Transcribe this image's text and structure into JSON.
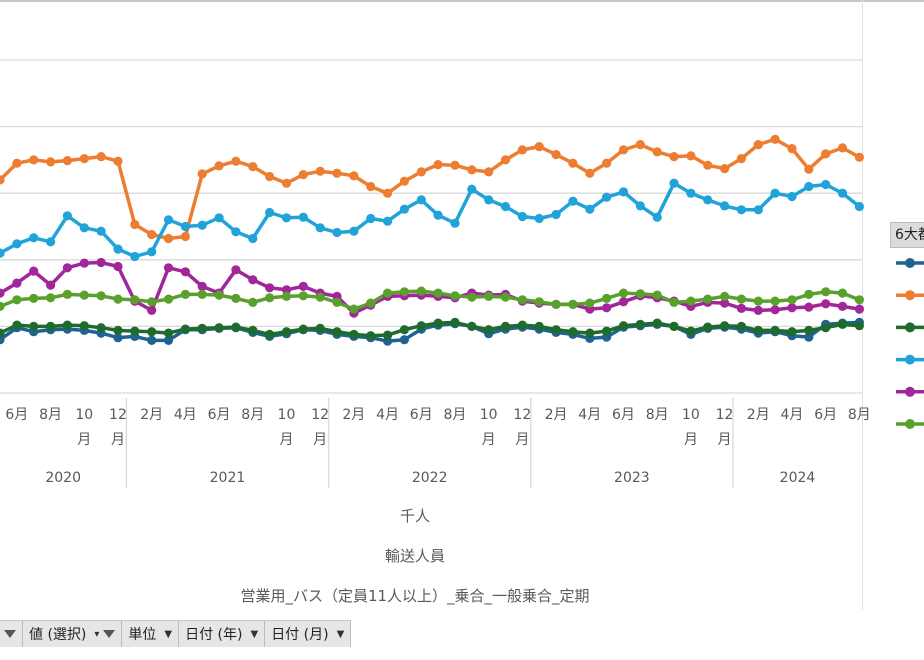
{
  "legend": {
    "title": "6大都"
  },
  "axis_titles": {
    "unit": "千人",
    "measure": "輸送人員",
    "series_category": "営業用_バス（定員11人以上）_乗合_一般乗合_定期"
  },
  "filter_bar": {
    "value_select": "値 (選択)",
    "unit": "単位",
    "date_year": "日付 (年)",
    "date_month": "日付 (月)"
  },
  "chart_data": {
    "type": "line",
    "x": [
      "2020-05",
      "2020-06",
      "2020-07",
      "2020-08",
      "2020-09",
      "2020-10",
      "2020-11",
      "2020-12",
      "2021-01",
      "2021-02",
      "2021-03",
      "2021-04",
      "2021-05",
      "2021-06",
      "2021-07",
      "2021-08",
      "2021-09",
      "2021-10",
      "2021-11",
      "2021-12",
      "2022-01",
      "2022-02",
      "2022-03",
      "2022-04",
      "2022-05",
      "2022-06",
      "2022-07",
      "2022-08",
      "2022-09",
      "2022-10",
      "2022-11",
      "2022-12",
      "2023-01",
      "2023-02",
      "2023-03",
      "2023-04",
      "2023-05",
      "2023-06",
      "2023-07",
      "2023-08",
      "2023-09",
      "2023-10",
      "2023-11",
      "2023-12",
      "2024-01",
      "2024-02",
      "2024-03",
      "2024-04",
      "2024-05",
      "2024-06",
      "2024-07",
      "2024-08"
    ],
    "years": [
      "2020",
      "2021",
      "2022",
      "2023",
      "2024"
    ],
    "month_tick_labels": [
      "6月",
      "8月",
      "10月",
      "12月",
      "2月",
      "4月",
      "6月",
      "8月",
      "10月",
      "12月",
      "2月",
      "4月",
      "6月",
      "8月",
      "10月",
      "12月",
      "2月",
      "4月",
      "6月",
      "8月",
      "10月",
      "12月",
      "2月",
      "4月",
      "6月",
      "8月"
    ],
    "y_gridlines": [
      0,
      100,
      200,
      300,
      400,
      500
    ],
    "ylim": [
      0,
      500
    ],
    "series": [
      {
        "color": "#1f6391",
        "values": [
          80,
          98,
          92,
          95,
          96,
          94,
          90,
          83,
          85,
          79,
          79,
          95,
          95,
          97,
          98,
          91,
          85,
          89,
          95,
          94,
          88,
          85,
          83,
          78,
          80,
          96,
          102,
          104,
          100,
          89,
          96,
          99,
          96,
          91,
          88,
          82,
          84,
          99,
          101,
          103,
          100,
          88,
          97,
          99,
          96,
          90,
          92,
          86,
          84,
          103,
          105,
          106
        ]
      },
      {
        "color": "#ed7d31",
        "values": [
          320,
          345,
          350,
          347,
          349,
          352,
          355,
          348,
          253,
          238,
          232,
          235,
          329,
          341,
          348,
          340,
          325,
          315,
          328,
          333,
          330,
          326,
          310,
          300,
          318,
          332,
          343,
          342,
          335,
          332,
          350,
          365,
          370,
          358,
          345,
          330,
          345,
          365,
          373,
          362,
          355,
          356,
          342,
          337,
          352,
          373,
          381,
          367,
          336,
          359,
          368,
          354
        ]
      },
      {
        "color": "#1e6b2c",
        "values": [
          90,
          102,
          100,
          100,
          102,
          101,
          98,
          94,
          93,
          92,
          90,
          96,
          97,
          98,
          99,
          94,
          88,
          92,
          96,
          97,
          92,
          88,
          86,
          87,
          95,
          101,
          105,
          106,
          100,
          95,
          100,
          102,
          100,
          95,
          92,
          90,
          93,
          101,
          103,
          105,
          100,
          93,
          99,
          101,
          100,
          94,
          94,
          92,
          94,
          98,
          103,
          101
        ]
      },
      {
        "color": "#20a3d9",
        "values": [
          210,
          224,
          233,
          227,
          266,
          248,
          243,
          216,
          205,
          212,
          260,
          250,
          252,
          263,
          242,
          232,
          271,
          263,
          264,
          248,
          241,
          243,
          262,
          258,
          276,
          290,
          267,
          255,
          306,
          290,
          280,
          265,
          262,
          268,
          288,
          276,
          294,
          302,
          281,
          264,
          315,
          300,
          290,
          281,
          275,
          275,
          300,
          295,
          310,
          313,
          300,
          280
        ]
      },
      {
        "color": "#a0269a",
        "values": [
          150,
          165,
          183,
          162,
          188,
          195,
          196,
          190,
          138,
          124,
          188,
          182,
          160,
          150,
          185,
          170,
          158,
          155,
          160,
          150,
          145,
          120,
          132,
          145,
          146,
          147,
          145,
          143,
          150,
          147,
          148,
          138,
          135,
          133,
          133,
          126,
          128,
          137,
          146,
          143,
          138,
          130,
          136,
          135,
          127,
          124,
          125,
          128,
          129,
          134,
          130,
          126
        ]
      },
      {
        "color": "#5aa02c",
        "values": [
          130,
          140,
          142,
          143,
          148,
          147,
          146,
          141,
          140,
          137,
          141,
          148,
          148,
          147,
          142,
          136,
          143,
          145,
          146,
          144,
          136,
          126,
          135,
          150,
          152,
          153,
          150,
          146,
          144,
          145,
          144,
          140,
          137,
          133,
          133,
          135,
          142,
          150,
          149,
          147,
          136,
          138,
          141,
          145,
          141,
          138,
          138,
          140,
          148,
          152,
          150,
          140
        ]
      }
    ]
  }
}
